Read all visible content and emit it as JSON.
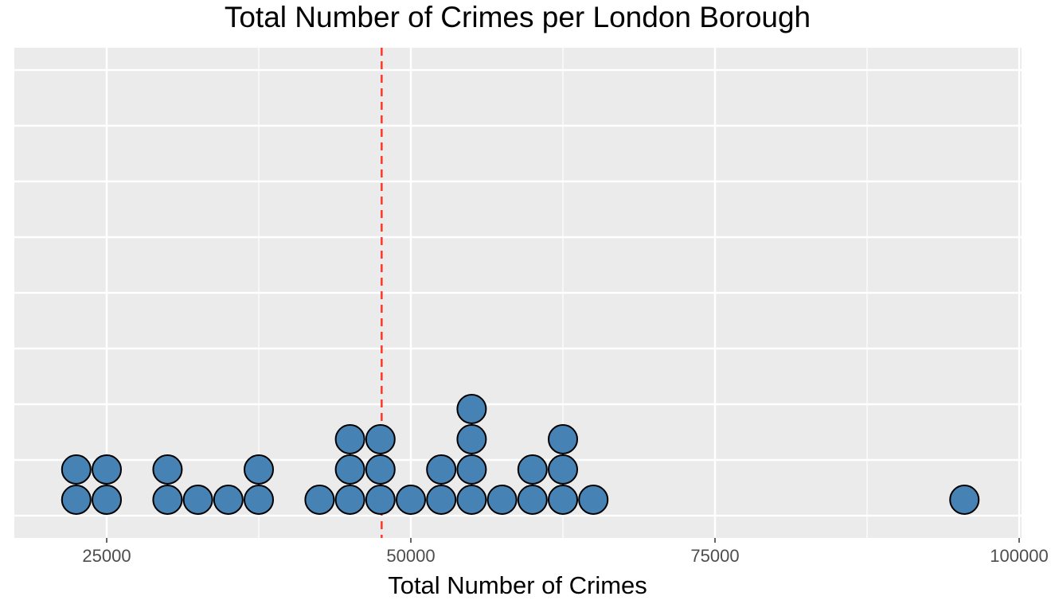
{
  "chart_data": {
    "type": "dotplot",
    "title": "Total Number of Crimes per London Borough",
    "xlabel": "Total Number of Crimes",
    "ylabel": "",
    "xlim": [
      17500,
      100000
    ],
    "xticks": [
      {
        "value": 25000,
        "label": "25000"
      },
      {
        "value": 50000,
        "label": "50000"
      },
      {
        "value": 75000,
        "label": "75000"
      },
      {
        "value": 100000,
        "label": "100000"
      }
    ],
    "mean_line": {
      "value": 47600,
      "color": "#ff3b30",
      "style": "dashed"
    },
    "dot_fill": "#4682b4",
    "dot_stroke": "#000000",
    "panel_background": "#ebebeb",
    "grid": true,
    "legend": "none",
    "bins": [
      {
        "x": 22500,
        "count": 2
      },
      {
        "x": 25000,
        "count": 2
      },
      {
        "x": 30000,
        "count": 2
      },
      {
        "x": 32500,
        "count": 1
      },
      {
        "x": 35000,
        "count": 1
      },
      {
        "x": 37500,
        "count": 2
      },
      {
        "x": 42500,
        "count": 1
      },
      {
        "x": 45000,
        "count": 3
      },
      {
        "x": 47500,
        "count": 3
      },
      {
        "x": 50000,
        "count": 1
      },
      {
        "x": 52500,
        "count": 2
      },
      {
        "x": 55000,
        "count": 4
      },
      {
        "x": 57500,
        "count": 1
      },
      {
        "x": 60000,
        "count": 2
      },
      {
        "x": 62500,
        "count": 3
      },
      {
        "x": 65000,
        "count": 1
      },
      {
        "x": 95500,
        "count": 1
      }
    ]
  }
}
